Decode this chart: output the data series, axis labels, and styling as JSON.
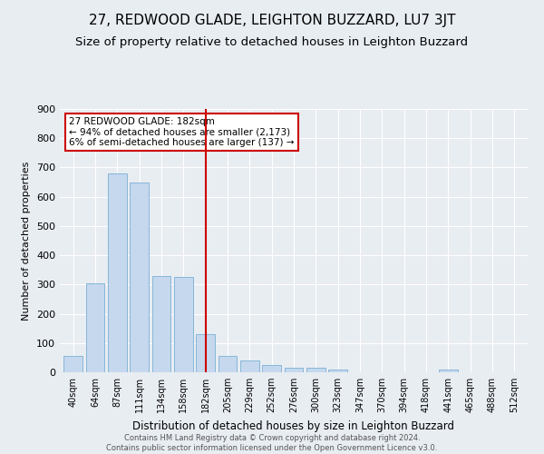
{
  "title": "27, REDWOOD GLADE, LEIGHTON BUZZARD, LU7 3JT",
  "subtitle": "Size of property relative to detached houses in Leighton Buzzard",
  "xlabel": "Distribution of detached houses by size in Leighton Buzzard",
  "ylabel": "Number of detached properties",
  "bar_color": "#c5d8ee",
  "bar_edge_color": "#7aafd4",
  "annotation_lines": [
    "27 REDWOOD GLADE: 182sqm",
    "← 94% of detached houses are smaller (2,173)",
    "6% of semi-detached houses are larger (137) →"
  ],
  "footer1": "Contains HM Land Registry data © Crown copyright and database right 2024.",
  "footer2": "Contains public sector information licensed under the Open Government Licence v3.0.",
  "categories": [
    "40sqm",
    "64sqm",
    "87sqm",
    "111sqm",
    "134sqm",
    "158sqm",
    "182sqm",
    "205sqm",
    "229sqm",
    "252sqm",
    "276sqm",
    "300sqm",
    "323sqm",
    "347sqm",
    "370sqm",
    "394sqm",
    "418sqm",
    "441sqm",
    "465sqm",
    "488sqm",
    "512sqm"
  ],
  "values": [
    55,
    305,
    680,
    650,
    330,
    325,
    130,
    55,
    40,
    25,
    15,
    15,
    10,
    0,
    0,
    0,
    0,
    10,
    0,
    0,
    0
  ],
  "ylim": [
    0,
    900
  ],
  "yticks": [
    0,
    100,
    200,
    300,
    400,
    500,
    600,
    700,
    800,
    900
  ],
  "background_color": "#e8edf2",
  "plot_bg_color": "#e8edf2",
  "title_fontsize": 11,
  "subtitle_fontsize": 9.5,
  "annotation_box_color": "white",
  "annotation_box_edgecolor": "#cc0000",
  "vline_color": "#cc0000",
  "vline_idx": 6
}
